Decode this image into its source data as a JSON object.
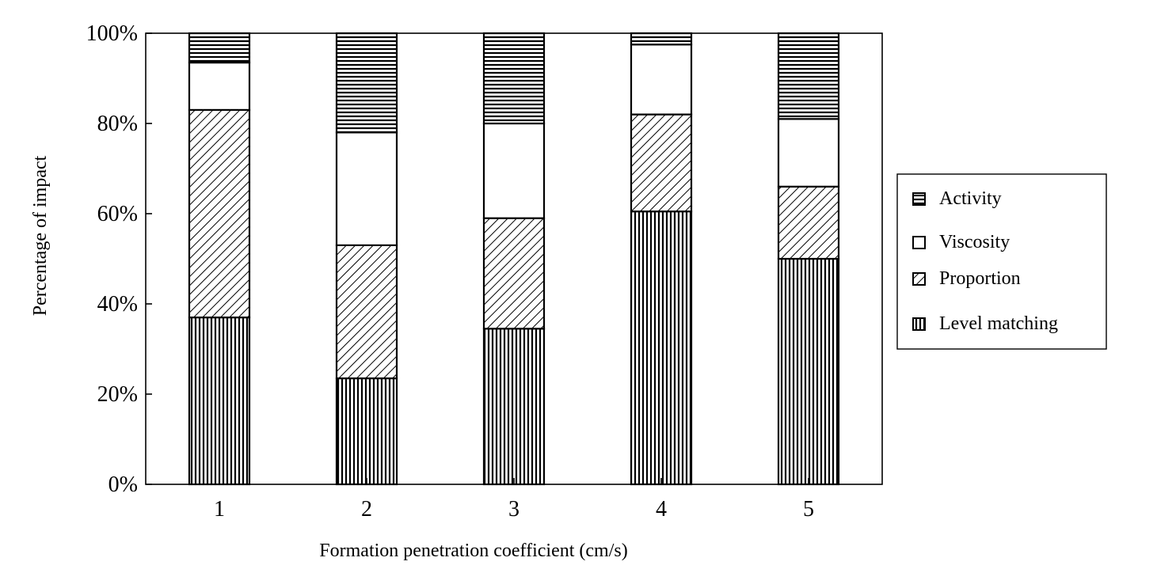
{
  "chart_data": {
    "type": "bar",
    "stacked": true,
    "xlabel": "Formation penetration coefficient (cm/s)",
    "ylabel": "Percentage of impact",
    "categories": [
      "1",
      "2",
      "3",
      "4",
      "5"
    ],
    "y_ticks": [
      "0%",
      "20%",
      "40%",
      "60%",
      "80%",
      "100%"
    ],
    "ylim": [
      0,
      100
    ],
    "legend_position": "right",
    "series": [
      {
        "name": "Level matching",
        "pattern": "vertical-lines",
        "values": [
          37,
          23.5,
          34.5,
          60.5,
          50
        ]
      },
      {
        "name": "Proportion",
        "pattern": "diagonal-hatch",
        "values": [
          46,
          29.5,
          24.5,
          21.5,
          16
        ]
      },
      {
        "name": "Viscosity",
        "pattern": "blank",
        "values": [
          10.5,
          25,
          21,
          15.5,
          15
        ]
      },
      {
        "name": "Activity",
        "pattern": "horizontal-lines",
        "values": [
          6.5,
          22,
          20,
          2.5,
          19
        ]
      }
    ],
    "legend_order": [
      "Activity",
      "Viscosity",
      "Proportion",
      "Level matching"
    ]
  }
}
